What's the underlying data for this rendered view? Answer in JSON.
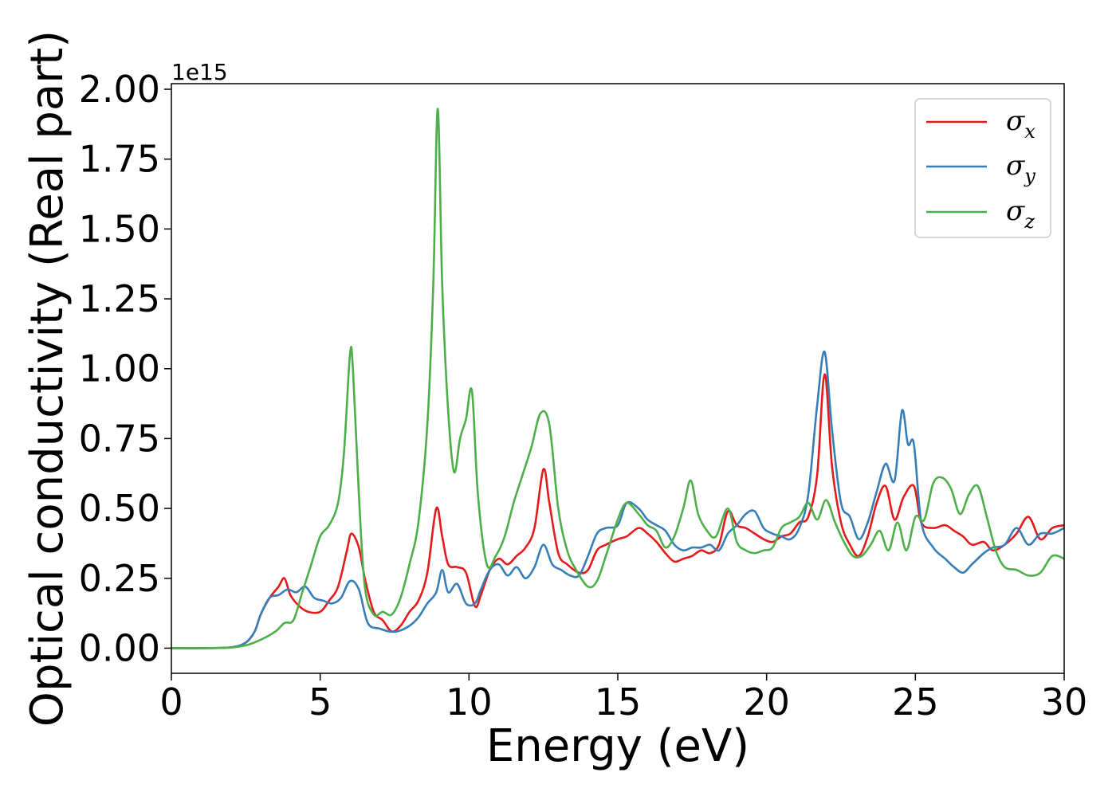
{
  "chart_data": {
    "type": "line",
    "title": "",
    "xlabel": "Energy (eV)",
    "ylabel": "Optical conductivity (Real part)",
    "y_offset_label": "1e15",
    "xlim": [
      0,
      30
    ],
    "ylim": [
      -0.09,
      2.02
    ],
    "xticks": [
      0,
      5,
      10,
      15,
      20,
      25,
      30
    ],
    "xtick_labels": [
      "0",
      "5",
      "10",
      "15",
      "20",
      "25",
      "30"
    ],
    "yticks": [
      0.0,
      0.25,
      0.5,
      0.75,
      1.0,
      1.25,
      1.5,
      1.75,
      2.0
    ],
    "ytick_labels": [
      "0.00",
      "0.25",
      "0.50",
      "0.75",
      "1.00",
      "1.25",
      "1.50",
      "1.75",
      "2.00"
    ],
    "grid": false,
    "legend_position": "top-right",
    "series": [
      {
        "name": "σx",
        "symbol": "σ",
        "subscript": "x",
        "color": "#e41a1c",
        "x": [
          0,
          1,
          2,
          2.5,
          2.8,
          3.0,
          3.3,
          3.6,
          3.8,
          4.0,
          4.3,
          4.6,
          5.0,
          5.3,
          5.6,
          5.9,
          6.05,
          6.3,
          6.5,
          6.8,
          7.1,
          7.4,
          7.7,
          8.0,
          8.3,
          8.6,
          8.9,
          9.1,
          9.3,
          9.6,
          9.9,
          10.2,
          10.4,
          10.7,
          11.0,
          11.3,
          11.6,
          11.9,
          12.2,
          12.5,
          12.7,
          13.0,
          13.3,
          13.7,
          14.0,
          14.3,
          14.6,
          15.0,
          15.3,
          15.7,
          16.0,
          16.3,
          16.6,
          16.9,
          17.2,
          17.5,
          17.8,
          18.1,
          18.4,
          18.7,
          19.0,
          19.3,
          19.6,
          19.9,
          20.2,
          20.5,
          20.8,
          21.1,
          21.4,
          21.7,
          21.95,
          22.2,
          22.5,
          22.8,
          23.1,
          23.4,
          23.7,
          24.0,
          24.3,
          24.6,
          24.95,
          25.2,
          25.6,
          26.0,
          26.3,
          26.6,
          26.9,
          27.3,
          27.6,
          28.0,
          28.4,
          28.8,
          29.2,
          29.6,
          30.0
        ],
        "y": [
          0.0,
          0.0,
          0.003,
          0.02,
          0.06,
          0.12,
          0.18,
          0.22,
          0.25,
          0.19,
          0.15,
          0.13,
          0.13,
          0.17,
          0.22,
          0.35,
          0.41,
          0.36,
          0.25,
          0.13,
          0.1,
          0.06,
          0.08,
          0.13,
          0.17,
          0.27,
          0.5,
          0.4,
          0.3,
          0.29,
          0.27,
          0.15,
          0.19,
          0.28,
          0.32,
          0.3,
          0.33,
          0.36,
          0.43,
          0.64,
          0.52,
          0.34,
          0.3,
          0.27,
          0.28,
          0.35,
          0.37,
          0.39,
          0.4,
          0.43,
          0.41,
          0.38,
          0.34,
          0.31,
          0.32,
          0.33,
          0.35,
          0.34,
          0.37,
          0.49,
          0.44,
          0.43,
          0.41,
          0.39,
          0.38,
          0.4,
          0.41,
          0.45,
          0.47,
          0.62,
          0.98,
          0.65,
          0.45,
          0.37,
          0.33,
          0.4,
          0.52,
          0.58,
          0.46,
          0.54,
          0.58,
          0.45,
          0.43,
          0.44,
          0.42,
          0.4,
          0.37,
          0.38,
          0.35,
          0.37,
          0.41,
          0.47,
          0.39,
          0.43,
          0.44
        ]
      },
      {
        "name": "σy",
        "symbol": "σ",
        "subscript": "y",
        "color": "#377eb8",
        "x": [
          0,
          1,
          2,
          2.5,
          2.8,
          3.0,
          3.3,
          3.6,
          3.9,
          4.2,
          4.5,
          4.8,
          5.1,
          5.4,
          5.7,
          6.0,
          6.3,
          6.6,
          7.0,
          7.3,
          7.6,
          8.0,
          8.3,
          8.6,
          8.9,
          9.1,
          9.3,
          9.6,
          9.9,
          10.2,
          10.4,
          10.7,
          11.0,
          11.3,
          11.6,
          11.9,
          12.2,
          12.5,
          12.8,
          13.1,
          13.4,
          13.7,
          14.0,
          14.3,
          14.6,
          15.0,
          15.3,
          15.7,
          16.0,
          16.3,
          16.6,
          16.9,
          17.2,
          17.5,
          17.8,
          18.1,
          18.4,
          18.7,
          19.0,
          19.3,
          19.6,
          19.9,
          20.2,
          20.5,
          20.8,
          21.1,
          21.4,
          21.7,
          21.95,
          22.2,
          22.5,
          22.8,
          23.1,
          23.4,
          23.7,
          24.0,
          24.3,
          24.55,
          24.75,
          24.95,
          25.2,
          25.6,
          26.0,
          26.3,
          26.6,
          26.9,
          27.3,
          27.6,
          28.0,
          28.4,
          28.8,
          29.2,
          29.6,
          30.0
        ],
        "y": [
          0.0,
          0.0,
          0.003,
          0.02,
          0.06,
          0.12,
          0.18,
          0.19,
          0.21,
          0.2,
          0.22,
          0.18,
          0.17,
          0.16,
          0.18,
          0.24,
          0.21,
          0.09,
          0.07,
          0.06,
          0.06,
          0.08,
          0.11,
          0.16,
          0.2,
          0.28,
          0.2,
          0.23,
          0.16,
          0.16,
          0.21,
          0.28,
          0.3,
          0.26,
          0.29,
          0.25,
          0.29,
          0.37,
          0.3,
          0.28,
          0.26,
          0.26,
          0.33,
          0.41,
          0.43,
          0.44,
          0.52,
          0.5,
          0.46,
          0.44,
          0.42,
          0.37,
          0.35,
          0.36,
          0.36,
          0.37,
          0.35,
          0.41,
          0.44,
          0.48,
          0.49,
          0.43,
          0.41,
          0.4,
          0.39,
          0.43,
          0.55,
          0.87,
          1.06,
          0.78,
          0.52,
          0.47,
          0.39,
          0.45,
          0.56,
          0.66,
          0.6,
          0.85,
          0.73,
          0.73,
          0.45,
          0.36,
          0.32,
          0.29,
          0.27,
          0.3,
          0.34,
          0.36,
          0.37,
          0.43,
          0.37,
          0.41,
          0.41,
          0.43
        ]
      },
      {
        "name": "σz",
        "symbol": "σ",
        "subscript": "z",
        "color": "#4daf4a",
        "x": [
          0,
          1,
          2,
          2.5,
          3.0,
          3.5,
          3.8,
          4.1,
          4.4,
          4.7,
          5.0,
          5.3,
          5.6,
          5.8,
          6.0,
          6.1,
          6.3,
          6.5,
          6.8,
          7.1,
          7.4,
          7.7,
          8.0,
          8.3,
          8.6,
          8.8,
          8.95,
          9.1,
          9.3,
          9.5,
          9.7,
          9.9,
          10.1,
          10.3,
          10.6,
          10.9,
          11.2,
          11.5,
          11.8,
          12.1,
          12.4,
          12.7,
          13.0,
          13.3,
          13.6,
          14.0,
          14.3,
          14.6,
          15.0,
          15.3,
          15.7,
          16.0,
          16.3,
          16.6,
          16.9,
          17.2,
          17.45,
          17.7,
          18.0,
          18.3,
          18.7,
          19.0,
          19.3,
          19.6,
          19.9,
          20.2,
          20.5,
          20.8,
          21.1,
          21.4,
          21.7,
          22.0,
          22.3,
          22.6,
          22.9,
          23.2,
          23.5,
          23.8,
          24.1,
          24.4,
          24.7,
          25.0,
          25.3,
          25.6,
          25.9,
          26.2,
          26.5,
          26.8,
          27.1,
          27.4,
          27.7,
          28.0,
          28.4,
          28.8,
          29.2,
          29.6,
          30.0
        ],
        "y": [
          0.0,
          0.0,
          0.002,
          0.01,
          0.03,
          0.06,
          0.09,
          0.1,
          0.2,
          0.3,
          0.4,
          0.44,
          0.52,
          0.7,
          1.05,
          1.0,
          0.55,
          0.22,
          0.12,
          0.13,
          0.12,
          0.18,
          0.3,
          0.45,
          0.8,
          1.3,
          1.93,
          1.3,
          0.85,
          0.63,
          0.75,
          0.82,
          0.92,
          0.55,
          0.3,
          0.33,
          0.4,
          0.52,
          0.62,
          0.72,
          0.84,
          0.8,
          0.5,
          0.35,
          0.28,
          0.22,
          0.24,
          0.33,
          0.46,
          0.52,
          0.48,
          0.44,
          0.42,
          0.36,
          0.4,
          0.5,
          0.6,
          0.48,
          0.42,
          0.4,
          0.5,
          0.38,
          0.35,
          0.34,
          0.35,
          0.36,
          0.43,
          0.45,
          0.47,
          0.52,
          0.46,
          0.53,
          0.45,
          0.38,
          0.33,
          0.33,
          0.37,
          0.42,
          0.35,
          0.45,
          0.35,
          0.47,
          0.46,
          0.59,
          0.61,
          0.57,
          0.48,
          0.55,
          0.58,
          0.47,
          0.35,
          0.29,
          0.28,
          0.26,
          0.27,
          0.33,
          0.32
        ]
      }
    ]
  }
}
